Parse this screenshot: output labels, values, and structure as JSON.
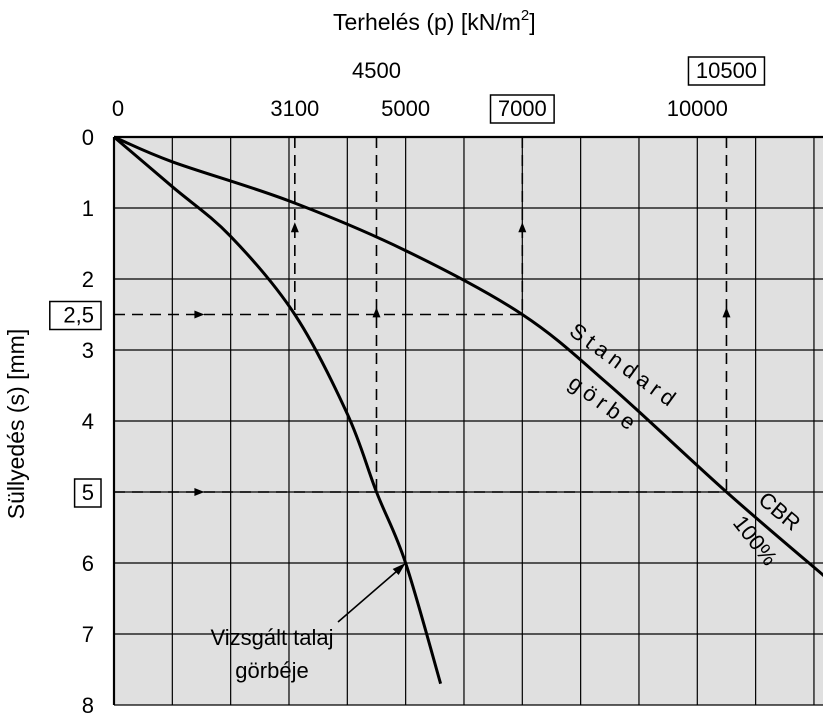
{
  "chart_data": {
    "type": "line",
    "xlabel_main": "Terhelés (p) [kN/m",
    "xlabel_sup": "2",
    "xlabel_end": "]",
    "ylabel": "Süllyedés (s) [mm]",
    "xlim": [
      0,
      12200
    ],
    "ylim": [
      0,
      8
    ],
    "x_grid_step": 1000,
    "y_grid_step": 1,
    "grid": true,
    "y_inverted": true,
    "x_axis_position": "top",
    "x_ticks": [
      {
        "value": 0,
        "label": "0"
      },
      {
        "value": 3100,
        "label": "3100"
      },
      {
        "value": 5000,
        "label": "5000"
      },
      {
        "value": 7000,
        "label": "7000",
        "boxed": true
      },
      {
        "value": 10000,
        "label": "10000"
      }
    ],
    "x_ticks_upper": [
      {
        "value": 4500,
        "label": "4500"
      },
      {
        "value": 10500,
        "label": "10500",
        "boxed": true
      }
    ],
    "y_ticks": [
      {
        "value": 0,
        "label": "0"
      },
      {
        "value": 1,
        "label": "1"
      },
      {
        "value": 2,
        "label": "2"
      },
      {
        "value": 2.5,
        "label": "2,5",
        "boxed": true
      },
      {
        "value": 3,
        "label": "3"
      },
      {
        "value": 4,
        "label": "4"
      },
      {
        "value": 5,
        "label": "5",
        "boxed": true
      },
      {
        "value": 6,
        "label": "6"
      },
      {
        "value": 7,
        "label": "7"
      },
      {
        "value": 8,
        "label": "8"
      }
    ],
    "series": [
      {
        "name": "Standard görbe",
        "label_line1": "Standard",
        "label_line2": "görbe",
        "x": [
          0,
          1000,
          3000,
          5000,
          7000,
          8500,
          10500,
          12200
        ],
        "y": [
          0,
          0.35,
          0.9,
          1.6,
          2.5,
          3.5,
          5.0,
          6.2
        ]
      },
      {
        "name": "Vizsgált talaj görbéje",
        "label_line1": "Vizsgált talaj",
        "label_line2": "görbéje",
        "x": [
          0,
          1000,
          2000,
          3100,
          4000,
          4500,
          5000,
          5600
        ],
        "y": [
          0,
          0.7,
          1.4,
          2.5,
          3.9,
          5.0,
          6.0,
          7.7
        ]
      }
    ],
    "annotations": [
      {
        "text": "CBR",
        "line2": "100%"
      }
    ],
    "guide_lines": [
      {
        "s": 2.5,
        "p_values": [
          3100,
          7000
        ]
      },
      {
        "s": 5,
        "p_values": [
          4500,
          10500
        ]
      }
    ],
    "pointer": {
      "target": [
        5000,
        6.0
      ]
    }
  },
  "colors": {
    "plot_background": "#e0e0e0",
    "grid": "#000000",
    "curve": "#000000"
  }
}
